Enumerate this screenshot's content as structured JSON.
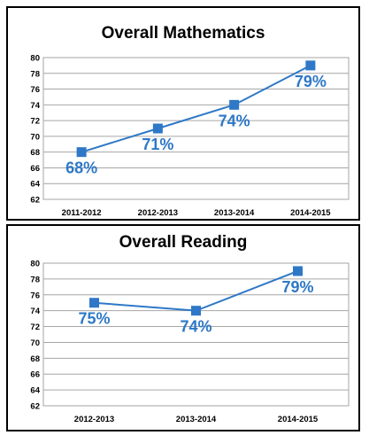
{
  "chart_data": [
    {
      "type": "line",
      "title": "Overall Mathematics",
      "categories": [
        "2011-2012",
        "2012-2013",
        "2013-2014",
        "2014-2015"
      ],
      "values": [
        68,
        71,
        74,
        79
      ],
      "data_labels": [
        "68%",
        "71%",
        "74%",
        "79%"
      ],
      "ylim": [
        62,
        80
      ],
      "yticks": [
        62,
        64,
        66,
        68,
        70,
        72,
        74,
        76,
        78,
        80
      ],
      "grid": true,
      "color": "#2e78c7",
      "marker": "square"
    },
    {
      "type": "line",
      "title": "Overall Reading",
      "categories": [
        "2012-2013",
        "2013-2014",
        "2014-2015"
      ],
      "values": [
        75,
        74,
        79
      ],
      "data_labels": [
        "75%",
        "74%",
        "79%"
      ],
      "ylim": [
        62,
        80
      ],
      "yticks": [
        62,
        64,
        66,
        68,
        70,
        72,
        74,
        76,
        78,
        80
      ],
      "grid": true,
      "color": "#2e78c7",
      "marker": "square"
    }
  ]
}
